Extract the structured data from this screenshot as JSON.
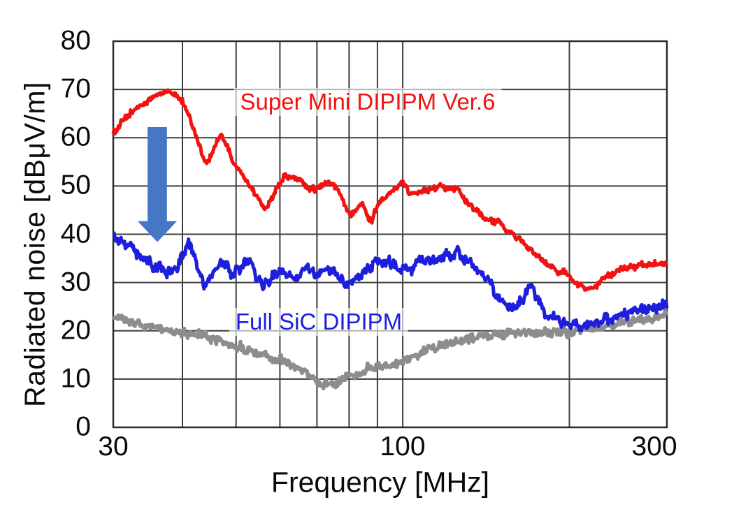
{
  "chart_data": {
    "type": "line",
    "title": "",
    "xlabel": "Frequency [MHz]",
    "ylabel": "Radiated noise [dBμV/m]",
    "x_scale": "log",
    "xlim": [
      30,
      300
    ],
    "ylim": [
      0,
      80
    ],
    "x_ticks": [
      {
        "value": 30,
        "label": "30"
      },
      {
        "value": 100,
        "label": "100"
      },
      {
        "value": 300,
        "label": "300"
      }
    ],
    "x_gridlines": [
      30,
      40,
      50,
      60,
      70,
      80,
      90,
      100,
      200,
      300
    ],
    "y_ticks": [
      0,
      10,
      20,
      30,
      40,
      50,
      60,
      70,
      80
    ],
    "grid": true,
    "grid_color": "#3d3d3d",
    "axis_color": "#2b2b2b",
    "legend_position": "inline-annotations",
    "series": [
      {
        "id": "super-mini-dipipm-ver6",
        "name": "Super Mini DIPIPM Ver.6",
        "color": "#f11212",
        "noise_db": 0.55,
        "points": [
          [
            30,
            61
          ],
          [
            31.5,
            64
          ],
          [
            33.5,
            66.5
          ],
          [
            35.5,
            68.3
          ],
          [
            37.6,
            70
          ],
          [
            39,
            69
          ],
          [
            40,
            67.3
          ],
          [
            41,
            65.1
          ],
          [
            42.6,
            59.6
          ],
          [
            43.9,
            55.3
          ],
          [
            44.8,
            55.5
          ],
          [
            46.3,
            59.3
          ],
          [
            47,
            60.6
          ],
          [
            48.5,
            57.7
          ],
          [
            49.2,
            55
          ],
          [
            50.3,
            53.8
          ],
          [
            52,
            51.3
          ],
          [
            54,
            48.6
          ],
          [
            56.5,
            45.3
          ],
          [
            59,
            49
          ],
          [
            61,
            51.8
          ],
          [
            63,
            51.9
          ],
          [
            65,
            51.2
          ],
          [
            68,
            49.5
          ],
          [
            70,
            49.3
          ],
          [
            72,
            50.5
          ],
          [
            74,
            50.9
          ],
          [
            76.5,
            49
          ],
          [
            78.5,
            45.9
          ],
          [
            80.5,
            44
          ],
          [
            82.5,
            45.6
          ],
          [
            84.5,
            46.6
          ],
          [
            86.8,
            43.2
          ],
          [
            88,
            42.8
          ],
          [
            90,
            46.5
          ],
          [
            93,
            48
          ],
          [
            97,
            49.8
          ],
          [
            100,
            50.8
          ],
          [
            103.5,
            48.3
          ],
          [
            108,
            49
          ],
          [
            114,
            49.5
          ],
          [
            118,
            50
          ],
          [
            122,
            49.4
          ],
          [
            125,
            49.9
          ],
          [
            131.6,
            46.1
          ],
          [
            139.7,
            43.7
          ],
          [
            148.3,
            42.5
          ],
          [
            152.7,
            41.2
          ],
          [
            160.3,
            39.3
          ],
          [
            168,
            37.5
          ],
          [
            176.5,
            35.3
          ],
          [
            181.6,
            34
          ],
          [
            188.6,
            32.5
          ],
          [
            196.3,
            32.1
          ],
          [
            201.8,
            30.7
          ],
          [
            211,
            29.2
          ],
          [
            219.6,
            28.9
          ],
          [
            225.6,
            29.6
          ],
          [
            234.6,
            31.4
          ],
          [
            246.3,
            32.5
          ],
          [
            257.7,
            33.3
          ],
          [
            270.6,
            33.5
          ],
          [
            284.3,
            33.8
          ],
          [
            298,
            33.3
          ]
        ]
      },
      {
        "id": "full-sic-dipipm",
        "name": "Full SiC DIPIPM",
        "color": "#1e1edd",
        "noise_db": 0.95,
        "points": [
          [
            30,
            39.5
          ],
          [
            31,
            38.6
          ],
          [
            31.9,
            37.6
          ],
          [
            32.9,
            36.5
          ],
          [
            33.9,
            35
          ],
          [
            35.3,
            33.6
          ],
          [
            36.7,
            32.4
          ],
          [
            38.1,
            32.1
          ],
          [
            39.2,
            32.8
          ],
          [
            40.4,
            36.5
          ],
          [
            41,
            37.9
          ],
          [
            41.8,
            36
          ],
          [
            42.7,
            32.8
          ],
          [
            43.8,
            29.2
          ],
          [
            44.5,
            29.5
          ],
          [
            45.6,
            32.4
          ],
          [
            46.8,
            34
          ],
          [
            48,
            33.8
          ],
          [
            49.3,
            31.4
          ],
          [
            50.5,
            33.1
          ],
          [
            51.7,
            34.7
          ],
          [
            53,
            35
          ],
          [
            54.3,
            31.4
          ],
          [
            55.7,
            29.7
          ],
          [
            57.2,
            30
          ],
          [
            58.6,
            31.4
          ],
          [
            60.1,
            32.1
          ],
          [
            62.4,
            31.6
          ],
          [
            64.8,
            31.1
          ],
          [
            67,
            33.6
          ],
          [
            69.2,
            32.1
          ],
          [
            73.2,
            32.5
          ],
          [
            77.9,
            31.1
          ],
          [
            79.1,
            29.7
          ],
          [
            81.4,
            30.2
          ],
          [
            84,
            31.5
          ],
          [
            86.6,
            33.1
          ],
          [
            90,
            34.3
          ],
          [
            95.6,
            33.9
          ],
          [
            99.4,
            32.1
          ],
          [
            103.3,
            33.1
          ],
          [
            109.6,
            34.5
          ],
          [
            116,
            35.2
          ],
          [
            122,
            35.5
          ],
          [
            125,
            36
          ],
          [
            131,
            34.5
          ],
          [
            138.4,
            31.7
          ],
          [
            143,
            30.5
          ],
          [
            147.5,
            27.5
          ],
          [
            151,
            26.5
          ],
          [
            158.5,
            24.4
          ],
          [
            163,
            25.8
          ],
          [
            169,
            29.3
          ],
          [
            172,
            28.6
          ],
          [
            181.6,
            23.2
          ],
          [
            190.8,
            22.1
          ],
          [
            201,
            21.4
          ],
          [
            211.4,
            21.1
          ],
          [
            221.5,
            21.2
          ],
          [
            232.7,
            22.5
          ],
          [
            244,
            22.9
          ],
          [
            256.4,
            23.9
          ],
          [
            269.5,
            24.2
          ],
          [
            283.3,
            24.6
          ],
          [
            298.3,
            25.2
          ]
        ]
      },
      {
        "id": "background-noise-floor",
        "name": "",
        "color": "#8d8d8d",
        "noise_db": 0.8,
        "points": [
          [
            30,
            23.2
          ],
          [
            32,
            21.9
          ],
          [
            35,
            21
          ],
          [
            40,
            19.8
          ],
          [
            45,
            18.4
          ],
          [
            50,
            16.7
          ],
          [
            55,
            15.3
          ],
          [
            60,
            13.9
          ],
          [
            65,
            12.2
          ],
          [
            68,
            10.6
          ],
          [
            70,
            9.6
          ],
          [
            73,
            8.8
          ],
          [
            76,
            9.1
          ],
          [
            79.4,
            10.4
          ],
          [
            85,
            11.6
          ],
          [
            90,
            12.6
          ],
          [
            100,
            13.7
          ],
          [
            106,
            15
          ],
          [
            112,
            16.2
          ],
          [
            123,
            17.6
          ],
          [
            134.5,
            18.6
          ],
          [
            147,
            19.3
          ],
          [
            160,
            19.7
          ],
          [
            180,
            19.7
          ],
          [
            201,
            19.9
          ],
          [
            216,
            20.3
          ],
          [
            232.7,
            20.9
          ],
          [
            256.4,
            21.9
          ],
          [
            283.3,
            22.7
          ],
          [
            298.3,
            23.3
          ]
        ]
      }
    ],
    "annotations": {
      "arrow": {
        "shape": "block-arrow-down",
        "color": "#4677c5",
        "shaft_x_mhz": [
          34.6,
          37.5
        ],
        "head_x_mhz": [
          33.2,
          39.1
        ],
        "top_db": 62.2,
        "head_top_db": 42.7,
        "tip_db": 38.4
      }
    }
  }
}
